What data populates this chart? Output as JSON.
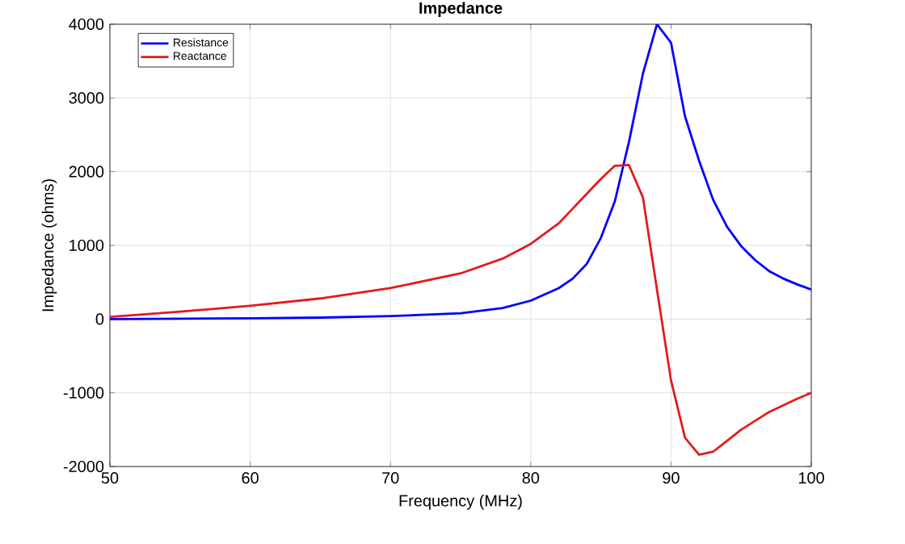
{
  "chart_data": {
    "type": "line",
    "title": "Impedance",
    "xlabel": "Frequency (MHz)",
    "ylabel": "Impedance (ohms)",
    "x": [
      50,
      55,
      60,
      65,
      70,
      75,
      78,
      80,
      82,
      83,
      84,
      85,
      86,
      87,
      88,
      89,
      90,
      91,
      92,
      93,
      94,
      95,
      96,
      97,
      98,
      99,
      100
    ],
    "series": [
      {
        "name": "Resistance",
        "color": "#0000ff",
        "values": [
          0,
          5,
          10,
          20,
          40,
          80,
          150,
          250,
          420,
          550,
          750,
          1100,
          1600,
          2400,
          3330,
          4000,
          3750,
          2750,
          2150,
          1620,
          1250,
          990,
          800,
          650,
          550,
          470,
          400
        ]
      },
      {
        "name": "Reactance",
        "color": "#e41a1c",
        "values": [
          30,
          100,
          180,
          280,
          420,
          620,
          820,
          1020,
          1300,
          1500,
          1700,
          1900,
          2080,
          2090,
          1650,
          400,
          -830,
          -1610,
          -1840,
          -1800,
          -1650,
          -1500,
          -1380,
          -1260,
          -1170,
          -1080,
          -1000
        ]
      }
    ],
    "xlim": [
      50,
      100
    ],
    "ylim": [
      -2000,
      4000
    ],
    "xticks": [
      50,
      60,
      70,
      80,
      90,
      100
    ],
    "yticks": [
      -2000,
      -1000,
      0,
      1000,
      2000,
      3000,
      4000
    ],
    "grid": true,
    "legend": "top left",
    "marker": "none",
    "line_style": "solid"
  }
}
